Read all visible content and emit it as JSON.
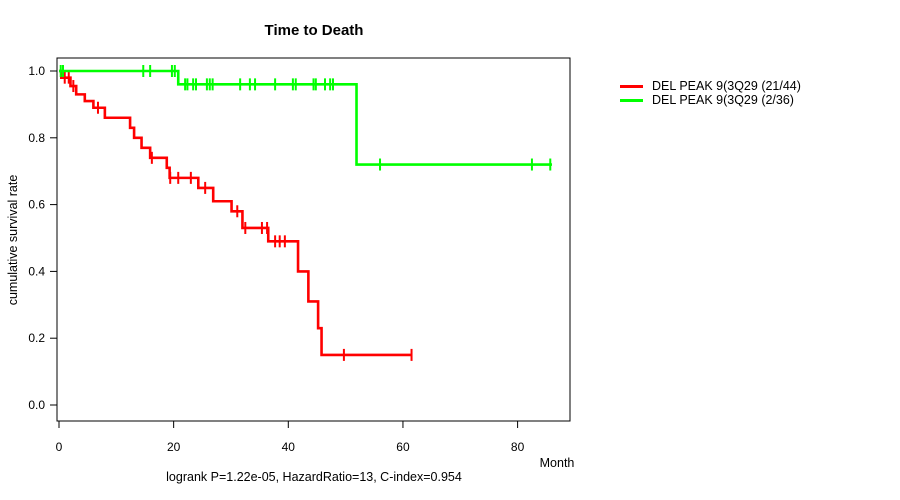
{
  "title": "Time to Death",
  "footer": "logrank P=1.22e-05, HazardRatio=13, C-index=0.954",
  "axes": {
    "x_label": "Month",
    "y_label": "cumulative survival rate"
  },
  "legend": {
    "items": [
      {
        "label": "DEL PEAK 9(3Q29 (21/44)",
        "color": "#ff0000"
      },
      {
        "label": "DEL PEAK 9(3Q29 (2/36)",
        "color": "#00ff00"
      }
    ]
  },
  "chart_data": {
    "type": "line",
    "subtype": "kaplan-meier-step",
    "title": "Time to Death",
    "xlabel": "Month",
    "ylabel": "cumulative survival rate",
    "xlim": [
      0,
      89
    ],
    "ylim": [
      0,
      1.04
    ],
    "x_ticks": [
      0,
      20,
      40,
      60,
      80
    ],
    "y_tick_labels": [
      "0.0",
      "0.2",
      "0.4",
      "0.6",
      "0.8",
      "1.0"
    ],
    "grid": false,
    "legend_position": "right-outside",
    "annotation": "logrank P=1.22e-05, HazardRatio=13, C-index=0.954",
    "series": [
      {
        "name": "DEL PEAK 9(3Q29 (21/44)",
        "color": "#ff0000",
        "events": "21/44",
        "steps": [
          [
            0,
            1.0
          ],
          [
            0.4,
            0.98
          ],
          [
            2,
            0.955
          ],
          [
            3,
            0.93
          ],
          [
            4.5,
            0.91
          ],
          [
            6,
            0.89
          ],
          [
            8,
            0.86
          ],
          [
            12.4,
            0.83
          ],
          [
            13.1,
            0.8
          ],
          [
            14.4,
            0.77
          ],
          [
            15.9,
            0.74
          ],
          [
            18.8,
            0.71
          ],
          [
            19.3,
            0.68
          ],
          [
            24.3,
            0.65
          ],
          [
            26.9,
            0.61
          ],
          [
            30.1,
            0.58
          ],
          [
            32,
            0.53
          ],
          [
            36.5,
            0.49
          ],
          [
            41.7,
            0.4
          ],
          [
            43.5,
            0.31
          ],
          [
            45.2,
            0.23
          ],
          [
            45.8,
            0.15
          ]
        ],
        "end_month": 61.5,
        "censored_months": [
          1,
          1.7,
          2.5,
          6.8,
          16.2,
          19.4,
          20.8,
          23,
          25.5,
          31.1,
          32.5,
          35.4,
          36.3,
          37.7,
          38.5,
          39.4,
          49.7,
          61.5
        ]
      },
      {
        "name": "DEL PEAK 9(3Q29 (2/36)",
        "color": "#00ff00",
        "events": "2/36",
        "steps": [
          [
            0,
            1.0
          ],
          [
            20.8,
            0.96
          ],
          [
            51.9,
            0.72
          ]
        ],
        "end_month": 86,
        "censored_months": [
          0.3,
          0.7,
          14.7,
          15.9,
          19.7,
          20.2,
          22,
          22.4,
          23.4,
          23.9,
          25.8,
          26.3,
          26.8,
          31.6,
          33.3,
          34.2,
          37.7,
          40.8,
          41.3,
          44.4,
          44.8,
          46.4,
          47.3,
          47.8,
          56,
          82.5,
          85.7
        ]
      }
    ]
  }
}
